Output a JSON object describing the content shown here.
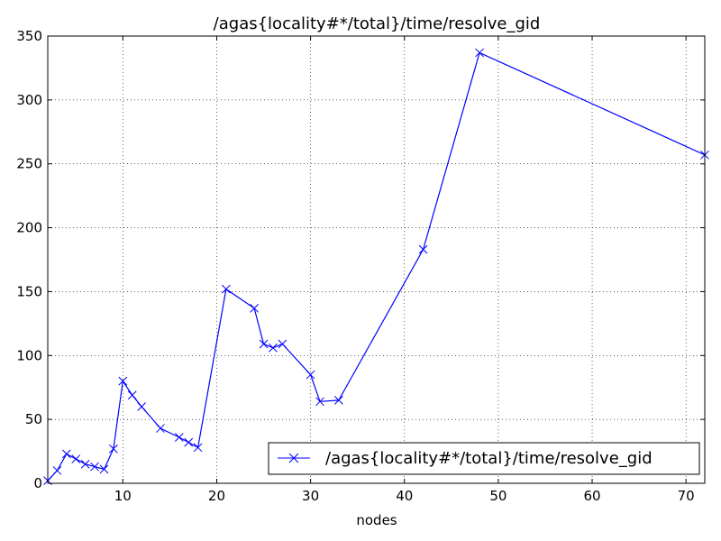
{
  "chart_data": {
    "type": "line",
    "title": "/agas{locality#*/total}/time/resolve_gid",
    "xlabel": "nodes",
    "ylabel": "",
    "xlim": [
      2,
      72
    ],
    "ylim": [
      0,
      350
    ],
    "xticks": [
      10,
      20,
      30,
      40,
      50,
      60,
      70
    ],
    "yticks": [
      0,
      50,
      100,
      150,
      200,
      250,
      300,
      350
    ],
    "grid": true,
    "legend_position": "bottom-right",
    "series": [
      {
        "name": "/agas{locality#*/total}/time/resolve_gid",
        "color": "#0000ff",
        "marker": "x",
        "x": [
          2,
          3,
          4,
          5,
          6,
          7,
          8,
          9,
          10,
          11,
          12,
          14,
          16,
          17,
          18,
          21,
          24,
          25,
          26,
          27,
          30,
          31,
          33,
          42,
          48,
          72
        ],
        "y": [
          2,
          10,
          23,
          19,
          15,
          13,
          11,
          27,
          80,
          69,
          60,
          43,
          36,
          32,
          28,
          152,
          137,
          109,
          106,
          109,
          85,
          64,
          65,
          183,
          337,
          257
        ]
      }
    ]
  }
}
